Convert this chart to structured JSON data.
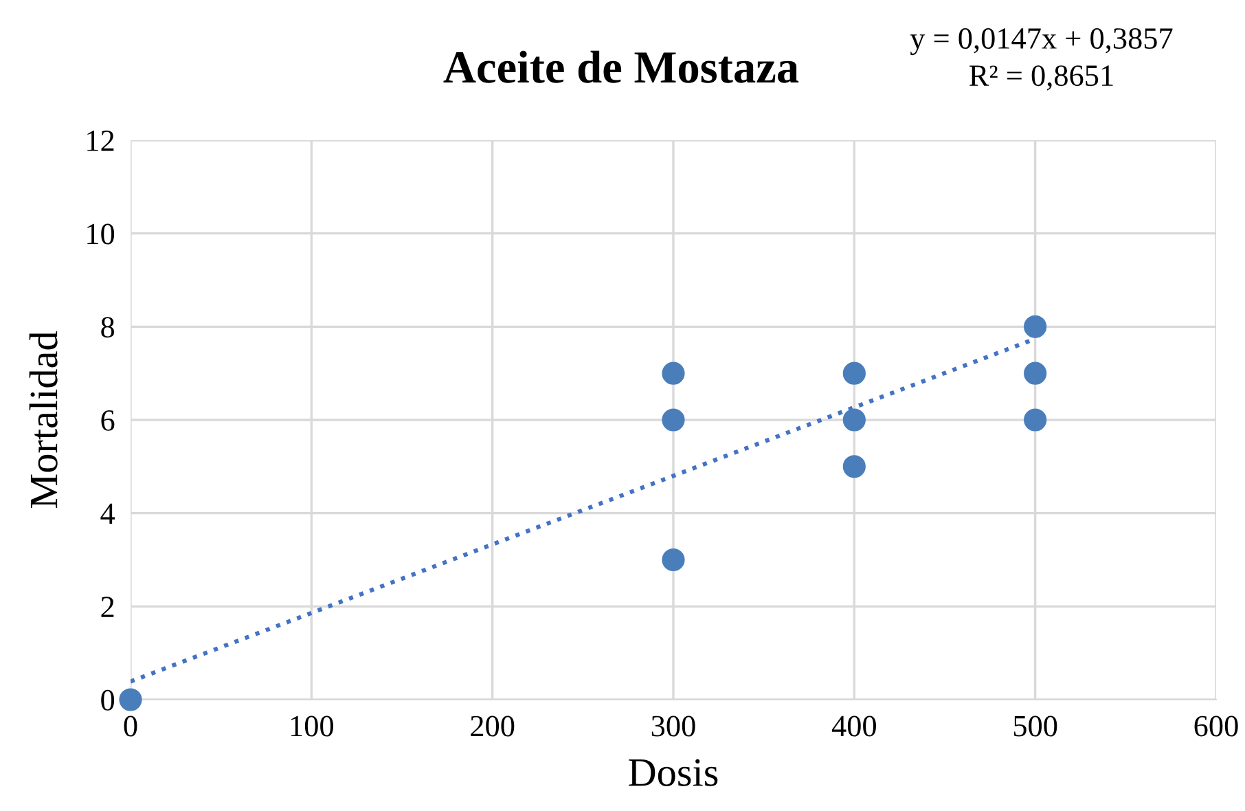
{
  "chart_data": {
    "type": "scatter",
    "title": "Aceite de Mostaza",
    "xlabel": "Dosis",
    "ylabel": "Mortalidad",
    "annotations": [
      "y = 0,0147x + 0,3857",
      "R² = 0,8651"
    ],
    "series": [
      {
        "color": "#4a7ebb",
        "marker": "circle",
        "x": [
          0,
          300,
          300,
          300,
          400,
          400,
          400,
          500,
          500,
          500
        ],
        "values": [
          0,
          3,
          6,
          7,
          5,
          6,
          7,
          6,
          7,
          8
        ]
      },
      {
        "type": "line",
        "color": "#4472c4",
        "line_style": "dotted",
        "marker": "none",
        "x": [
          0,
          500
        ],
        "values": [
          0.39,
          7.74
        ]
      }
    ],
    "xlim": [
      0,
      600
    ],
    "xticks": [
      0,
      100,
      200,
      300,
      400,
      500,
      600
    ],
    "ylim": [
      0,
      12
    ],
    "yticks": [
      0,
      2,
      4,
      6,
      8,
      10,
      12
    ],
    "grid": true,
    "legend": false
  }
}
